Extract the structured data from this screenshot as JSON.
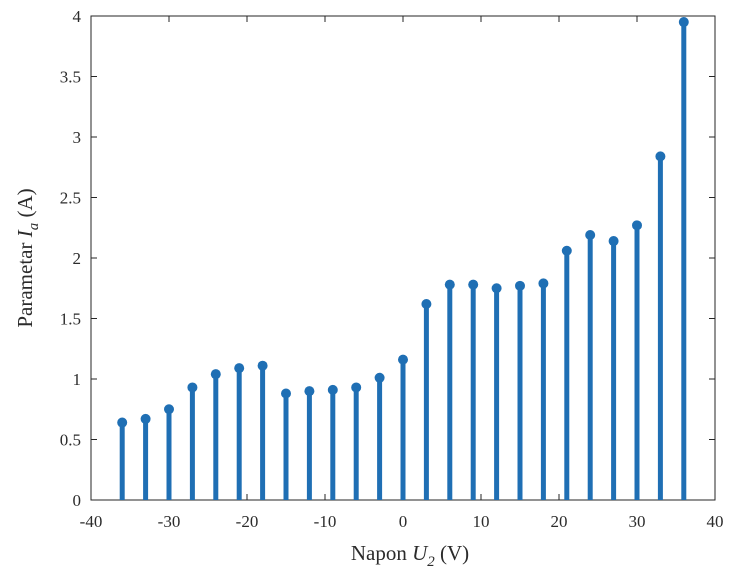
{
  "chart_data": {
    "type": "stem",
    "title": "",
    "xlabel": {
      "prefix": "Napon ",
      "symbol": "U",
      "subscript": "2",
      "suffix": " (V)"
    },
    "ylabel": {
      "prefix": "Parametar ",
      "symbol": "I",
      "subscript": "a",
      "suffix": " (A)"
    },
    "xlim": [
      -40,
      40
    ],
    "ylim": [
      0,
      4
    ],
    "xticks": [
      "-40",
      "-30",
      "-20",
      "-10",
      "0",
      "10",
      "20",
      "30",
      "40"
    ],
    "xtick_values": [
      -40,
      -30,
      -20,
      -10,
      0,
      10,
      20,
      30,
      40
    ],
    "yticks": [
      "0",
      "0.5",
      "1",
      "1.5",
      "2",
      "2.5",
      "3",
      "3.5",
      "4"
    ],
    "ytick_values": [
      0,
      0.5,
      1,
      1.5,
      2,
      2.5,
      3,
      3.5,
      4
    ],
    "grid": false,
    "series": [
      {
        "color": "#1f6fb4",
        "x": [
          -36,
          -33,
          -30,
          -27,
          -24,
          -21,
          -18,
          -15,
          -12,
          -9,
          -6,
          -3,
          0,
          3,
          6,
          9,
          12,
          15,
          18,
          21,
          24,
          27,
          30,
          33,
          36
        ],
        "y": [
          0.64,
          0.67,
          0.75,
          0.93,
          1.04,
          1.09,
          1.11,
          0.88,
          0.9,
          0.91,
          0.93,
          1.01,
          1.16,
          1.62,
          1.78,
          1.78,
          1.75,
          1.77,
          1.79,
          2.06,
          2.19,
          2.14,
          2.27,
          2.84,
          3.95
        ]
      }
    ]
  }
}
